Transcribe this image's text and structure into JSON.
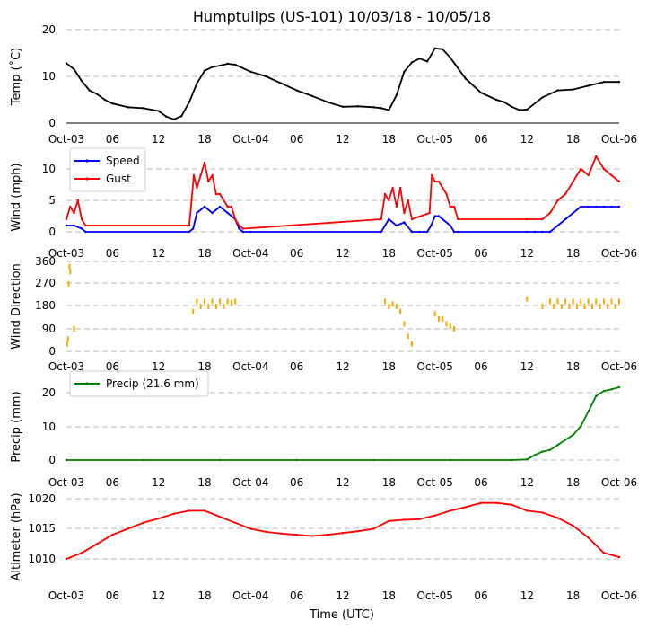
{
  "title": "Humptulips (US-101) 10/03/18 - 10/05/18",
  "xlabel": "Time (UTC)",
  "x_ticks": [
    "Oct-03",
    "06",
    "12",
    "18",
    "Oct-04",
    "06",
    "12",
    "18",
    "Oct-05",
    "06",
    "12",
    "18",
    "Oct-06"
  ],
  "chart_data": [
    {
      "type": "line",
      "ylabel": "Temp (˚C)",
      "ylim": [
        0,
        20
      ],
      "yticks": [
        "0",
        "10",
        "20"
      ],
      "x_unit": "hours since Oct-03 00:00 UTC",
      "series": [
        {
          "name": "Temperature",
          "color": "#000000",
          "x": [
            0,
            1,
            2,
            3,
            4,
            5,
            6,
            8,
            10,
            12,
            13,
            14,
            15,
            16,
            17,
            18,
            19,
            20,
            21,
            22,
            24,
            26,
            28,
            30,
            32,
            34,
            36,
            38,
            40,
            41,
            42,
            43,
            44,
            45,
            46,
            47,
            48,
            49,
            50,
            52,
            54,
            56,
            57,
            58,
            59,
            60,
            62,
            64,
            66,
            68,
            70,
            72
          ],
          "values": [
            12.8,
            11.5,
            9,
            7,
            6.2,
            5,
            4.2,
            3.4,
            3.2,
            2.6,
            1.4,
            0.8,
            1.5,
            4.5,
            8.5,
            11.2,
            12,
            12.3,
            12.7,
            12.5,
            11,
            10,
            8.5,
            7,
            5.8,
            4.5,
            3.5,
            3.6,
            3.4,
            3.2,
            2.8,
            6,
            11,
            13,
            13.8,
            13.2,
            16,
            15.8,
            14,
            9.5,
            6.5,
            5,
            4.5,
            3.5,
            2.8,
            2.9,
            5.5,
            7,
            7.2,
            8,
            8.8,
            8.8
          ]
        }
      ]
    },
    {
      "type": "line",
      "ylabel": "Wind (mph)",
      "ylim": [
        0,
        13
      ],
      "yticks": [
        "0",
        "5",
        "10"
      ],
      "legend": "top-left",
      "series": [
        {
          "name": "Speed",
          "color": "#0000ff",
          "x": [
            0,
            1,
            2,
            2.5,
            16,
            16.5,
            17,
            18,
            19,
            20,
            21,
            22,
            22.5,
            23,
            24,
            41,
            41.5,
            42,
            43,
            44,
            45,
            46,
            47,
            47.5,
            48,
            48.5,
            49,
            50,
            50.5,
            51,
            60,
            61,
            62,
            63,
            64,
            65,
            66,
            67,
            68,
            69,
            70,
            71,
            72
          ],
          "values": [
            1,
            1,
            0.5,
            0,
            0,
            0.5,
            3,
            4,
            3,
            4,
            3,
            2,
            0.5,
            0,
            0,
            0,
            1,
            2,
            1,
            1.5,
            0,
            0,
            0,
            1,
            2.5,
            2.5,
            2,
            1,
            0,
            0,
            0,
            0,
            0,
            0,
            1,
            2,
            3,
            4,
            4,
            4,
            4,
            4,
            4
          ]
        },
        {
          "name": "Gust",
          "color": "#ff0000",
          "x": [
            0,
            0.5,
            1,
            1.5,
            2,
            2.5,
            16,
            16.3,
            16.6,
            17,
            17.5,
            18,
            18.5,
            19,
            19.5,
            20,
            20.5,
            21,
            21.5,
            22,
            22.5,
            23,
            41,
            41.5,
            42,
            42.5,
            43,
            43.5,
            44,
            44.5,
            45,
            47.3,
            47.6,
            48,
            48.5,
            49,
            49.5,
            50,
            50.5,
            51,
            60,
            62,
            63,
            64,
            65,
            66,
            67,
            68,
            69,
            70,
            71,
            72
          ],
          "values": [
            2,
            4,
            3,
            5,
            2,
            1,
            1,
            5,
            9,
            7,
            9,
            11,
            8,
            9,
            6,
            6,
            5,
            4,
            4,
            2,
            1,
            0.5,
            2,
            6,
            5,
            7,
            4,
            7,
            3,
            5,
            2,
            3,
            9,
            8,
            8,
            7,
            6,
            4,
            4,
            2,
            2,
            2,
            3,
            5,
            6,
            8,
            10,
            9,
            12,
            10,
            9,
            8
          ]
        }
      ]
    },
    {
      "type": "scatter",
      "ylabel": "Wind Direction",
      "ylim": [
        0,
        360
      ],
      "yticks": [
        "0",
        "90",
        "180",
        "270",
        "360"
      ],
      "series": [
        {
          "name": "Direction",
          "color": "#ffa500",
          "x": [
            0.1,
            0.2,
            0.3,
            0.4,
            0.5,
            1,
            16.5,
            17,
            17.5,
            18,
            18.5,
            19,
            19.5,
            20,
            20.5,
            21,
            21.5,
            22,
            41.5,
            42,
            42.5,
            43,
            43.5,
            44,
            44.5,
            45,
            48,
            48.5,
            49,
            49.5,
            50,
            50.5,
            60,
            62,
            63,
            63.5,
            64,
            64.5,
            65,
            65.5,
            66,
            66.5,
            67,
            67.5,
            68,
            68.5,
            69,
            69.5,
            70,
            70.5,
            71,
            71.5,
            72
          ],
          "values": [
            30,
            50,
            270,
            340,
            320,
            90,
            160,
            200,
            180,
            200,
            180,
            200,
            180,
            200,
            180,
            200,
            195,
            200,
            200,
            180,
            190,
            180,
            160,
            110,
            60,
            30,
            150,
            130,
            130,
            110,
            100,
            90,
            210,
            180,
            200,
            180,
            200,
            180,
            200,
            180,
            200,
            180,
            200,
            180,
            200,
            180,
            200,
            180,
            200,
            180,
            200,
            180,
            200
          ]
        }
      ]
    },
    {
      "type": "line",
      "ylabel": "Precip (mm)",
      "ylim": [
        -2,
        25
      ],
      "yticks": [
        "0",
        "10",
        "20"
      ],
      "legend": "top-left",
      "series": [
        {
          "name": "Precip (21.6 mm)",
          "color": "#008000",
          "x": [
            0,
            10,
            20,
            30,
            40,
            50,
            58,
            60,
            61,
            62,
            63,
            64,
            65,
            66,
            67,
            68,
            69,
            70,
            71,
            72
          ],
          "values": [
            0,
            0,
            0,
            0,
            0,
            0,
            0,
            0.2,
            1.5,
            2.5,
            3,
            4.5,
            6,
            7.5,
            10,
            14.5,
            19,
            20.5,
            21,
            21.6
          ]
        }
      ]
    },
    {
      "type": "line",
      "ylabel": "Altimeter (hPa)",
      "ylim": [
        1006,
        1021
      ],
      "yticks": [
        "1010",
        "1015",
        "1020"
      ],
      "series": [
        {
          "name": "Altimeter",
          "color": "#ff0000",
          "x": [
            0,
            2,
            4,
            6,
            8,
            10,
            12,
            14,
            16,
            18,
            20,
            22,
            24,
            26,
            28,
            30,
            32,
            34,
            36,
            38,
            40,
            42,
            44,
            46,
            48,
            50,
            52,
            54,
            56,
            58,
            60,
            62,
            64,
            66,
            68,
            70,
            72
          ],
          "values": [
            1010,
            1011,
            1012.5,
            1014,
            1015,
            1016,
            1016.7,
            1017.5,
            1018,
            1018,
            1017,
            1016,
            1015,
            1014.5,
            1014.2,
            1014,
            1013.8,
            1014,
            1014.3,
            1014.6,
            1015,
            1016.3,
            1016.5,
            1016.6,
            1017.2,
            1018,
            1018.6,
            1019.3,
            1019.3,
            1019,
            1018,
            1017.7,
            1016.8,
            1015.5,
            1013.5,
            1011,
            1010.3
          ]
        }
      ]
    }
  ]
}
